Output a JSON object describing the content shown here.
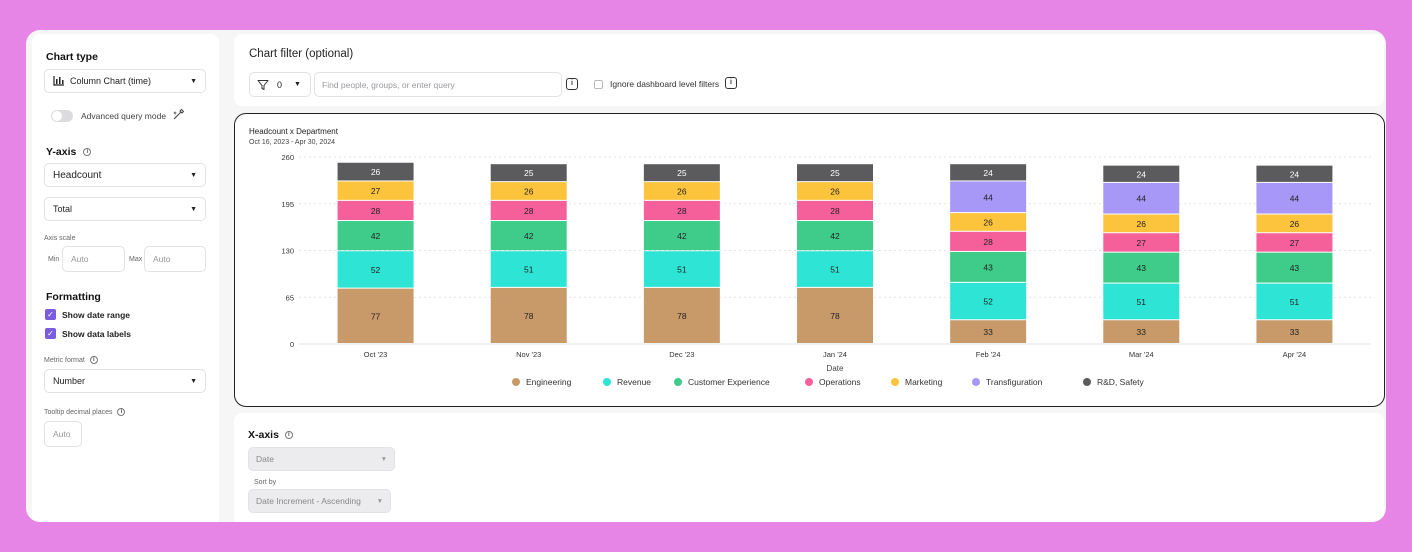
{
  "sidebar": {
    "chart_type_title": "Chart type",
    "chart_type_value": "Column Chart (time)",
    "advanced_query_label": "Advanced query mode",
    "yaxis_title": "Y-axis",
    "metric_value": "Headcount",
    "aggregation_value": "Total",
    "axis_scale_label": "Axis scale",
    "min_label": "Min",
    "max_label": "Max",
    "min_placeholder": "Auto",
    "max_placeholder": "Auto",
    "formatting_title": "Formatting",
    "show_date_range_label": "Show date range",
    "show_data_labels_label": "Show data labels",
    "metric_format_label": "Metric format",
    "metric_format_value": "Number",
    "tooltip_decimal_label": "Tooltip decimal places",
    "tooltip_decimal_placeholder": "Auto"
  },
  "filter": {
    "title": "Chart filter (optional)",
    "count": "0",
    "placeholder": "Find people, groups, or enter query",
    "ignore_label": "Ignore dashboard level filters"
  },
  "xaxis": {
    "title": "X-axis",
    "field_value": "Date",
    "sort_label": "Sort by",
    "sort_value": "Date Increment - Ascending"
  },
  "icons": {
    "info": "i",
    "caret": "▼",
    "check": "✓"
  },
  "chart_data": {
    "type": "bar",
    "stacked": true,
    "title": "Headcount x Department",
    "subtitle": "Oct 16, 2023 - Apr 30, 2024",
    "xlabel": "Date",
    "ylabel": "",
    "ylim": [
      0,
      260
    ],
    "yticks": [
      0,
      65,
      130,
      195,
      260
    ],
    "categories": [
      "Oct '23",
      "Nov '23",
      "Dec '23",
      "Jan '24",
      "Feb '24",
      "Mar '24",
      "Apr '24"
    ],
    "grid": true,
    "legend_position": "bottom",
    "series": [
      {
        "name": "Engineering",
        "color": "#c89a6a",
        "values": [
          77,
          78,
          78,
          78,
          33,
          33,
          33
        ]
      },
      {
        "name": "Revenue",
        "color": "#2ee5d5",
        "values": [
          52,
          51,
          51,
          51,
          52,
          51,
          51
        ]
      },
      {
        "name": "Customer Experience",
        "color": "#3fcc8a",
        "values": [
          42,
          42,
          42,
          42,
          43,
          43,
          43
        ]
      },
      {
        "name": "Operations",
        "color": "#f5609a",
        "values": [
          28,
          28,
          28,
          28,
          28,
          27,
          27
        ]
      },
      {
        "name": "Marketing",
        "color": "#fcc43c",
        "values": [
          27,
          26,
          26,
          26,
          26,
          26,
          26
        ]
      },
      {
        "name": "Transfiguration",
        "color": "#a797f7",
        "values": [
          0,
          0,
          0,
          0,
          44,
          44,
          44
        ]
      },
      {
        "name": "R&D, Safety",
        "color": "#5b5b5d",
        "values": [
          26,
          25,
          25,
          25,
          24,
          24,
          24
        ]
      }
    ]
  }
}
